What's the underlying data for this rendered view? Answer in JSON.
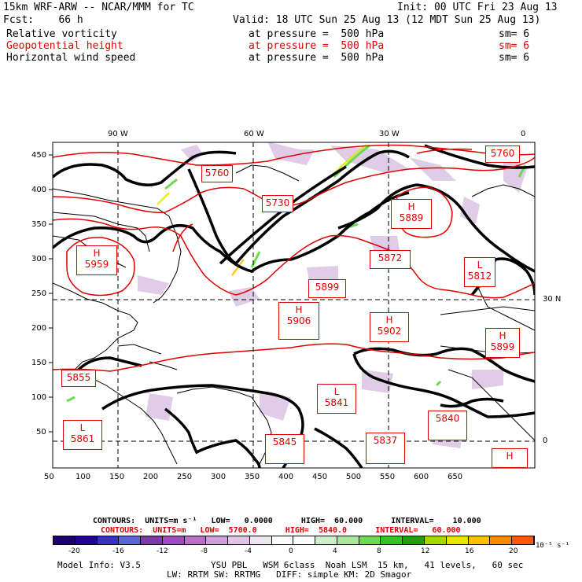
{
  "header": {
    "model": "15km WRF-ARW -- NCAR/MMM for TC",
    "init": "Init: 00 UTC Fri 23 Aug 13",
    "fcst": "Fcst:    66 h",
    "valid": "Valid: 18 UTC Sun 25 Aug 13 (12 MDT Sun 25 Aug 13)",
    "fields": [
      {
        "name": "Relative vorticity",
        "level": "at pressure =  500 hPa",
        "sm": "sm= 6",
        "color": "#000000"
      },
      {
        "name": "Geopotential height",
        "level": "at pressure =  500 hPa",
        "sm": "sm= 6",
        "color": "#e00000"
      },
      {
        "name": "Horizontal wind speed",
        "level": "at pressure =  500 hPa",
        "sm": "sm= 6",
        "color": "#000000"
      }
    ]
  },
  "map": {
    "top_lon_labels": [
      "90 W",
      "60 W",
      "30 W",
      "0"
    ],
    "right_lat_labels": [
      "30 N",
      "0"
    ],
    "y_ticks": [
      "450",
      "400",
      "350",
      "300",
      "250",
      "200",
      "150",
      "100",
      "50"
    ],
    "x_ticks": [
      "50",
      "100",
      "150",
      "200",
      "250",
      "300",
      "350",
      "400",
      "450",
      "500",
      "550",
      "600",
      "650"
    ],
    "height_labels": [
      {
        "kind": "",
        "value": "5760"
      },
      {
        "kind": "",
        "value": "5730"
      },
      {
        "kind": "",
        "value": "5760"
      },
      {
        "kind": "H",
        "value": "5889"
      },
      {
        "kind": "H",
        "value": "5959"
      },
      {
        "kind": "",
        "value": "5872"
      },
      {
        "kind": "",
        "value": "5899"
      },
      {
        "kind": "L",
        "value": "5812"
      },
      {
        "kind": "H",
        "value": "5906"
      },
      {
        "kind": "H",
        "value": "5902"
      },
      {
        "kind": "H",
        "value": "5899"
      },
      {
        "kind": "",
        "value": "5855"
      },
      {
        "kind": "L",
        "value": "5841"
      },
      {
        "kind": "L",
        "value": "5861"
      },
      {
        "kind": "",
        "value": "5840"
      },
      {
        "kind": "",
        "value": "5845"
      },
      {
        "kind": "",
        "value": "5837"
      },
      {
        "kind": "H",
        "value": ""
      }
    ],
    "colors": {
      "coast": "#000000",
      "height_contour": "#e00000",
      "wind_contour": "#000000"
    }
  },
  "footer": {
    "contours_black": "CONTOURS:  UNITS=m s⁻¹   LOW=   0.0000      HIGH=  60.000      INTERVAL=    10.000",
    "contours_red": "CONTOURS:  UNITS=m   LOW=  5700.0      HIGH=  5840.0      INTERVAL=   60.000",
    "colorbar_labels": [
      "-20",
      "-16",
      "-12",
      "-8",
      "-4",
      "0",
      "4",
      "8",
      "12",
      "16",
      "20"
    ],
    "colorbar_units": "10⁻⁵ s⁻¹",
    "colorbar_colors": [
      "#1a0070",
      "#23009a",
      "#3a2fc9",
      "#5b63dd",
      "#7c3ca8",
      "#9d4bbf",
      "#b870c8",
      "#cfa0d8",
      "#e2c5e6",
      "#f1e4f3",
      "#ffffff",
      "#ffffff",
      "#cfeecb",
      "#a9e89a",
      "#6bdb4e",
      "#2fc81a",
      "#1fa00a",
      "#a6d800",
      "#e6e600",
      "#ffc000",
      "#ff8a00",
      "#ff5a00"
    ],
    "model_info": "Model Info: V3.5",
    "physics_1": "YSU PBL   WSM 6class  Noah LSM  15 km,   41 levels,   60 sec",
    "physics_2": "LW: RRTM SW: RRTMG   DIFF: simple KM: 2D Smagor"
  }
}
